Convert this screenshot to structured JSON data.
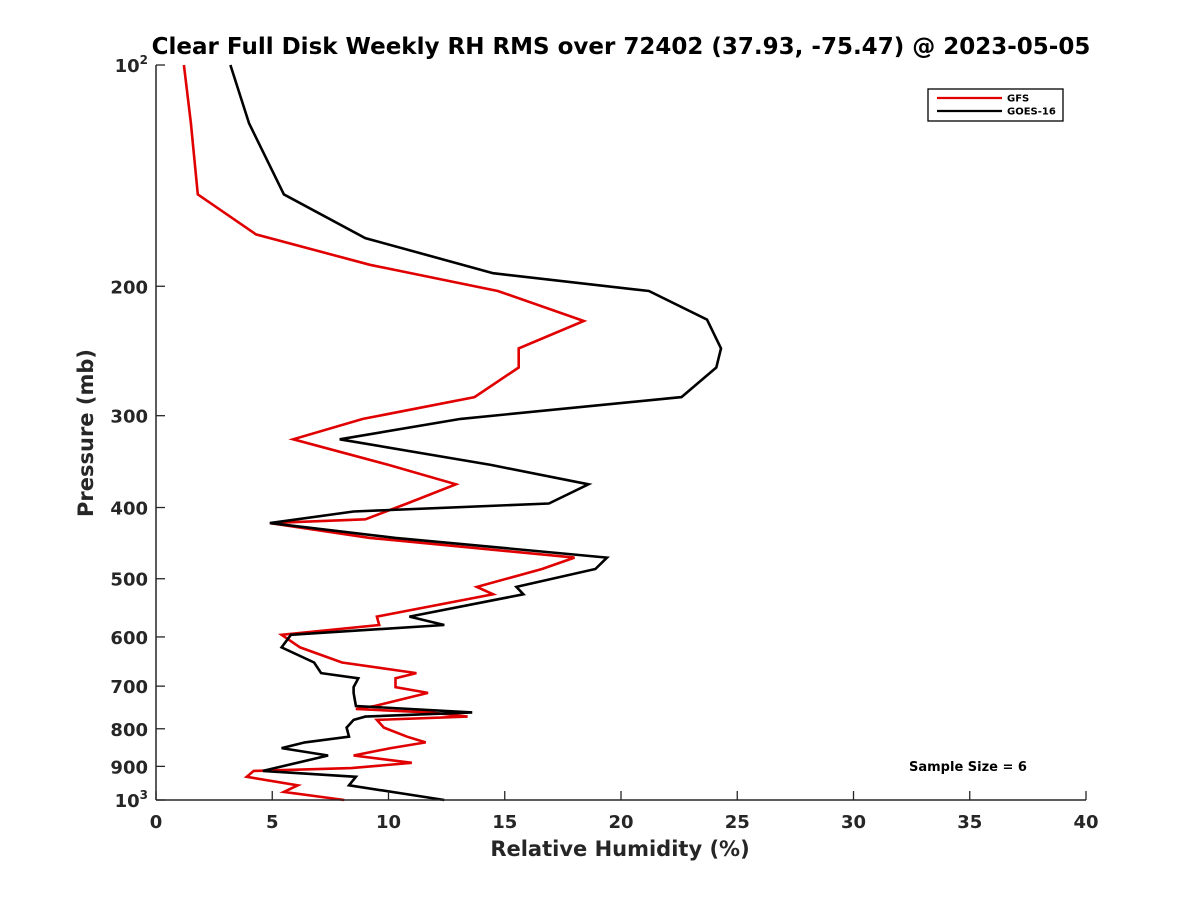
{
  "chart_data": {
    "type": "line",
    "title": "Clear Full Disk Weekly RH RMS over 72402 (37.93, -75.47) @ 2023-05-05",
    "xlabel": "Relative Humidity (%)",
    "ylabel": "Pressure (mb)",
    "xlim": [
      0,
      40
    ],
    "ylim": [
      100,
      1000
    ],
    "yscale": "log",
    "yreversed": true,
    "grid": false,
    "legend_position": "top-right",
    "x_ticks": [
      0,
      5,
      10,
      15,
      20,
      25,
      30,
      35,
      40
    ],
    "x_tick_labels": [
      "0",
      "5",
      "10",
      "15",
      "20",
      "25",
      "30",
      "35",
      "40"
    ],
    "y_ticks": [
      {
        "value": 100,
        "label": "10",
        "sup": "2"
      },
      {
        "value": 200,
        "label": "200",
        "sup": ""
      },
      {
        "value": 300,
        "label": "300",
        "sup": ""
      },
      {
        "value": 400,
        "label": "400",
        "sup": ""
      },
      {
        "value": 500,
        "label": "500",
        "sup": ""
      },
      {
        "value": 600,
        "label": "600",
        "sup": ""
      },
      {
        "value": 700,
        "label": "700",
        "sup": ""
      },
      {
        "value": 800,
        "label": "800",
        "sup": ""
      },
      {
        "value": 900,
        "label": "900",
        "sup": ""
      },
      {
        "value": 1000,
        "label": "10",
        "sup": "3"
      }
    ],
    "annotation": "Sample Size = 6",
    "series": [
      {
        "name": "GFS",
        "color": "#e00000",
        "points": [
          [
            1.2,
            100
          ],
          [
            1.5,
            120
          ],
          [
            1.8,
            150
          ],
          [
            4.3,
            170
          ],
          [
            9.2,
            187
          ],
          [
            14.7,
            203
          ],
          [
            18.4,
            223
          ],
          [
            15.6,
            243
          ],
          [
            15.6,
            258
          ],
          [
            13.7,
            283
          ],
          [
            8.9,
            303
          ],
          [
            5.9,
            323
          ],
          [
            10.0,
            350
          ],
          [
            12.9,
            372
          ],
          [
            10.8,
            395
          ],
          [
            9.0,
            415
          ],
          [
            4.9,
            420
          ],
          [
            9.2,
            440
          ],
          [
            18.0,
            468
          ],
          [
            16.6,
            485
          ],
          [
            13.8,
            513
          ],
          [
            14.5,
            525
          ],
          [
            9.5,
            563
          ],
          [
            9.6,
            578
          ],
          [
            5.4,
            596
          ],
          [
            6.2,
            620
          ],
          [
            8.0,
            650
          ],
          [
            11.2,
            672
          ],
          [
            10.3,
            683
          ],
          [
            10.3,
            702
          ],
          [
            11.7,
            715
          ],
          [
            9.4,
            745
          ],
          [
            8.6,
            752
          ],
          [
            11.8,
            760
          ],
          [
            13.4,
            770
          ],
          [
            9.5,
            778
          ],
          [
            9.8,
            797
          ],
          [
            10.8,
            820
          ],
          [
            11.6,
            835
          ],
          [
            10.1,
            850
          ],
          [
            8.5,
            870
          ],
          [
            11.0,
            890
          ],
          [
            8.4,
            905
          ],
          [
            4.2,
            913
          ],
          [
            3.9,
            930
          ],
          [
            6.1,
            955
          ],
          [
            5.5,
            975
          ],
          [
            8.1,
            1000
          ]
        ]
      },
      {
        "name": "GOES-16",
        "color": "#000000",
        "points": [
          [
            3.2,
            100
          ],
          [
            4.0,
            120
          ],
          [
            5.5,
            150
          ],
          [
            9.0,
            172
          ],
          [
            14.5,
            192
          ],
          [
            21.2,
            203
          ],
          [
            23.7,
            222
          ],
          [
            24.3,
            243
          ],
          [
            24.1,
            258
          ],
          [
            22.6,
            283
          ],
          [
            13.1,
            303
          ],
          [
            7.9,
            323
          ],
          [
            14.4,
            350
          ],
          [
            18.6,
            372
          ],
          [
            16.9,
            395
          ],
          [
            8.5,
            405
          ],
          [
            4.9,
            420
          ],
          [
            10.3,
            440
          ],
          [
            19.4,
            468
          ],
          [
            18.9,
            485
          ],
          [
            15.5,
            513
          ],
          [
            15.8,
            525
          ],
          [
            10.9,
            563
          ],
          [
            12.4,
            578
          ],
          [
            5.8,
            596
          ],
          [
            5.4,
            620
          ],
          [
            6.8,
            650
          ],
          [
            7.1,
            672
          ],
          [
            8.7,
            683
          ],
          [
            8.5,
            702
          ],
          [
            8.5,
            715
          ],
          [
            8.6,
            745
          ],
          [
            13.6,
            760
          ],
          [
            9.0,
            770
          ],
          [
            8.5,
            778
          ],
          [
            8.2,
            797
          ],
          [
            8.3,
            820
          ],
          [
            6.4,
            835
          ],
          [
            5.4,
            850
          ],
          [
            7.4,
            870
          ],
          [
            4.6,
            913
          ],
          [
            8.6,
            930
          ],
          [
            8.3,
            955
          ],
          [
            12.4,
            1000
          ]
        ]
      }
    ]
  }
}
